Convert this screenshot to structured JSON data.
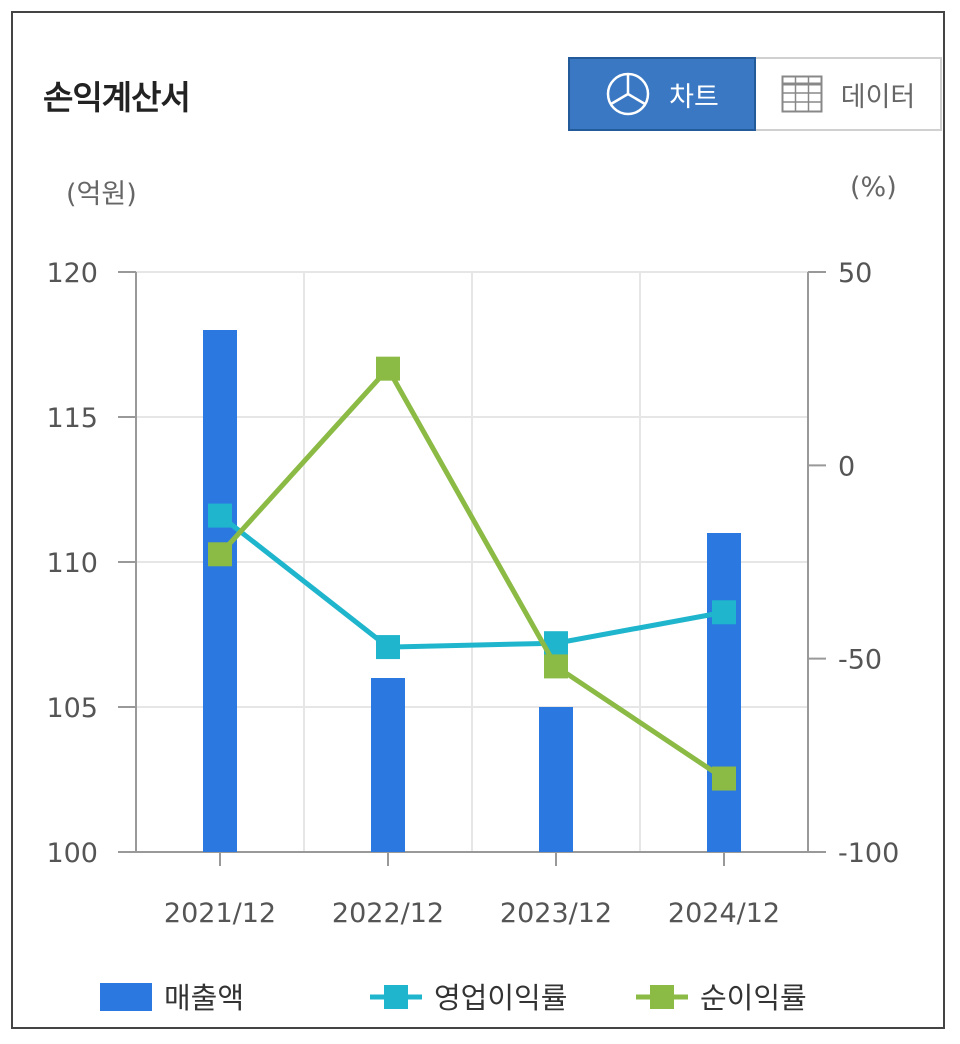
{
  "header": {
    "title": "손익계산서",
    "tabs": [
      {
        "label": "차트",
        "icon": "pie-chart-icon",
        "active": true
      },
      {
        "label": "데이터",
        "icon": "table-grid-icon",
        "active": false
      }
    ]
  },
  "chart_data": {
    "type": "bar",
    "categories": [
      "2021/12",
      "2022/12",
      "2023/12",
      "2024/12"
    ],
    "left_axis": {
      "unit": "(억원)",
      "ylim": [
        100,
        120
      ],
      "ticks": [
        100,
        105,
        110,
        115,
        120
      ]
    },
    "right_axis": {
      "unit": "(%)",
      "ylim": [
        -100,
        50
      ],
      "ticks": [
        -100,
        -50,
        0,
        50
      ]
    },
    "series": [
      {
        "name": "매출액",
        "type": "bar",
        "axis": "left",
        "color": "#2b79e0",
        "values": [
          118,
          106,
          105,
          111
        ]
      },
      {
        "name": "영업이익률",
        "type": "line",
        "axis": "right",
        "color": "#1fb5cc",
        "values": [
          -13,
          -47,
          -46,
          -38
        ]
      },
      {
        "name": "순이익률",
        "type": "line",
        "axis": "right",
        "color": "#8bba45",
        "values": [
          -23,
          25,
          -52,
          -81
        ]
      }
    ],
    "grid": true,
    "legend_position": "bottom"
  }
}
